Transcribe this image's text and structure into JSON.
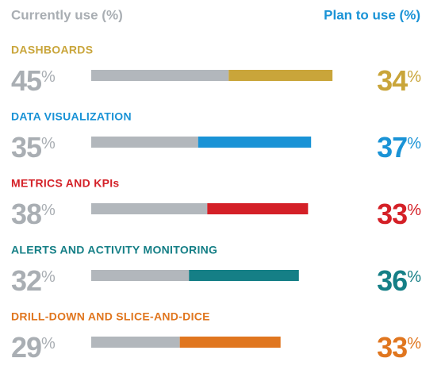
{
  "chart_data": {
    "type": "paired_bar",
    "categories": [
      "DASHBOARDS",
      "DATA VISUALIZATION",
      "METRICS AND KPIs",
      "ALERTS AND ACTIVITY MONITORING",
      "DRILL-DOWN AND SLICE-AND-DICE"
    ],
    "category_colors": [
      "#c9a53a",
      "#1a93d6",
      "#d42027",
      "#157f86",
      "#e0761f"
    ],
    "series": [
      {
        "name": "Currently use (%)",
        "color": "#b2b7bc",
        "label_color": "#a9aeb3",
        "values": [
          45,
          35,
          38,
          32,
          29
        ],
        "value_labels": [
          "45%",
          "35%",
          "38%",
          "32%",
          "29%"
        ]
      },
      {
        "name": "Plan to use (%)",
        "color": "#1a93d6",
        "values": [
          34,
          37,
          33,
          36,
          33
        ],
        "value_labels": [
          "34%",
          "37%",
          "33%",
          "36%",
          "33%"
        ]
      }
    ]
  }
}
